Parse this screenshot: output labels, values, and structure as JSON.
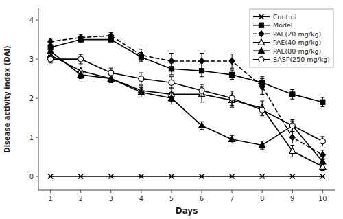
{
  "chart_data": {
    "type": "line",
    "xlabel": "Days",
    "ylabel": "Disease activity index (DAI)",
    "x": [
      1,
      2,
      3,
      4,
      5,
      6,
      7,
      8,
      9,
      10
    ],
    "xlim": [
      0.6,
      10.4
    ],
    "xticks": [
      1,
      2,
      3,
      4,
      5,
      6,
      7,
      8,
      9,
      10
    ],
    "ylim": [
      -0.35,
      4.3
    ],
    "yticks": [
      0,
      1,
      2,
      3,
      4
    ],
    "grid": false,
    "legend": "upper-right",
    "series": [
      {
        "name": "Control",
        "color": "black",
        "marker": "x",
        "line_style": "solid",
        "values": [
          0,
          0,
          0,
          0,
          0,
          0,
          0,
          0,
          0,
          0
        ],
        "errors": [
          0.0,
          0.0,
          0.0,
          0.0,
          0.0,
          0.0,
          0.0,
          0.0,
          0.0,
          0.0
        ]
      },
      {
        "name": "Model",
        "color": "black",
        "marker": "square",
        "line_style": "solid",
        "values": [
          3.3,
          3.5,
          3.5,
          3.05,
          2.75,
          2.7,
          2.6,
          2.4,
          2.1,
          1.9
        ],
        "errors": [
          0.08,
          0.08,
          0.08,
          0.12,
          0.15,
          0.15,
          0.12,
          0.15,
          0.12,
          0.12
        ]
      },
      {
        "name": "PAE(20 mg/kg)",
        "color": "black",
        "marker": "diamond",
        "line_style": "dashed",
        "values": [
          3.45,
          3.55,
          3.6,
          3.1,
          2.95,
          2.95,
          2.95,
          2.3,
          1.0,
          0.55
        ],
        "errors": [
          0.08,
          0.08,
          0.08,
          0.15,
          0.2,
          0.2,
          0.18,
          0.2,
          0.15,
          0.12
        ]
      },
      {
        "name": "PAE(40 mg/kg)",
        "color": "black",
        "marker": "triangle-open",
        "line_style": "solid",
        "values": [
          3.1,
          2.7,
          2.5,
          2.2,
          2.1,
          2.1,
          1.95,
          1.75,
          0.65,
          0.25
        ],
        "errors": [
          0.1,
          0.1,
          0.1,
          0.12,
          0.18,
          0.2,
          0.18,
          0.18,
          0.15,
          0.1
        ]
      },
      {
        "name": "PAE(80 mg/kg)",
        "color": "black",
        "marker": "triangle",
        "line_style": "solid",
        "values": [
          3.2,
          2.6,
          2.5,
          2.15,
          2.0,
          1.3,
          0.95,
          0.8,
          1.3,
          0.38
        ],
        "errors": [
          0.1,
          0.1,
          0.1,
          0.12,
          0.15,
          0.1,
          0.1,
          0.1,
          0.12,
          0.08
        ]
      },
      {
        "name": "SASP(250 mg/kg)",
        "color": "black",
        "marker": "circle-open",
        "line_style": "solid",
        "values": [
          3.0,
          3.0,
          2.65,
          2.5,
          2.4,
          2.2,
          2.0,
          1.7,
          1.3,
          0.9
        ],
        "errors": [
          0.1,
          0.12,
          0.12,
          0.15,
          0.15,
          0.15,
          0.18,
          0.15,
          0.15,
          0.12
        ]
      }
    ]
  }
}
